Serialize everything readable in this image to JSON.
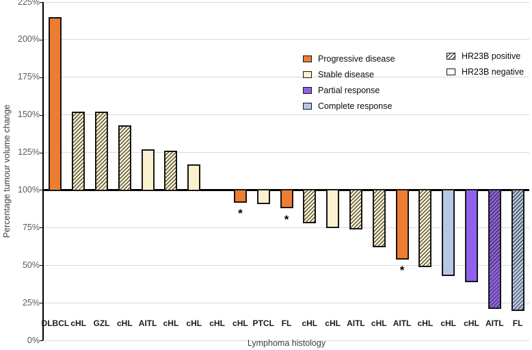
{
  "chart_data": {
    "type": "bar",
    "title": "",
    "xlabel": "Lymphoma histology",
    "ylabel": "Percentage tumour volume change",
    "baseline": 100,
    "ylim": [
      0,
      225
    ],
    "grid": true,
    "legend_position": "upper-middle inside plot",
    "yticks": [
      {
        "v": 0,
        "label": "0%"
      },
      {
        "v": 25,
        "label": "25%"
      },
      {
        "v": 50,
        "label": "50%"
      },
      {
        "v": 75,
        "label": "75%"
      },
      {
        "v": 100,
        "label": "100%"
      },
      {
        "v": 125,
        "label": "125%"
      },
      {
        "v": 150,
        "label": "150%"
      },
      {
        "v": 175,
        "label": "175%"
      },
      {
        "v": 200,
        "label": "200%"
      },
      {
        "v": 225,
        "label": "225%"
      }
    ],
    "categories": [
      "DLBCL",
      "cHL",
      "GZL",
      "cHL",
      "AITL",
      "cHL",
      "cHL",
      "cHL",
      "cHL",
      "PTCL",
      "FL",
      "cHL",
      "cHL",
      "AITL",
      "cHL",
      "AITL",
      "cHL",
      "cHL",
      "cHL",
      "AITL",
      "FL"
    ],
    "bars": [
      {
        "label": "DLBCL",
        "value": 215,
        "response": "progressive",
        "hr23b": "negative",
        "asterisk": false
      },
      {
        "label": "cHL",
        "value": 152,
        "response": "stable",
        "hr23b": "positive",
        "asterisk": false
      },
      {
        "label": "GZL",
        "value": 152,
        "response": "stable",
        "hr23b": "positive",
        "asterisk": false
      },
      {
        "label": "cHL",
        "value": 143,
        "response": "stable",
        "hr23b": "positive",
        "asterisk": false
      },
      {
        "label": "AITL",
        "value": 127,
        "response": "stable",
        "hr23b": "negative",
        "asterisk": false
      },
      {
        "label": "cHL",
        "value": 126,
        "response": "stable",
        "hr23b": "positive",
        "asterisk": false
      },
      {
        "label": "cHL",
        "value": 117,
        "response": "stable",
        "hr23b": "negative",
        "asterisk": false
      },
      {
        "label": "cHL",
        "value": 100,
        "response": "stable",
        "hr23b": "negative",
        "asterisk": false
      },
      {
        "label": "cHL",
        "value": 92,
        "response": "progressive",
        "hr23b": "negative",
        "asterisk": true
      },
      {
        "label": "PTCL",
        "value": 91,
        "response": "stable",
        "hr23b": "negative",
        "asterisk": false
      },
      {
        "label": "FL",
        "value": 88,
        "response": "progressive",
        "hr23b": "negative",
        "asterisk": true
      },
      {
        "label": "cHL",
        "value": 78,
        "response": "stable",
        "hr23b": "positive",
        "asterisk": false
      },
      {
        "label": "cHL",
        "value": 75,
        "response": "stable",
        "hr23b": "negative",
        "asterisk": false
      },
      {
        "label": "AITL",
        "value": 74,
        "response": "stable",
        "hr23b": "positive",
        "asterisk": false
      },
      {
        "label": "cHL",
        "value": 62,
        "response": "stable",
        "hr23b": "positive",
        "asterisk": false
      },
      {
        "label": "AITL",
        "value": 54,
        "response": "progressive",
        "hr23b": "negative",
        "asterisk": true
      },
      {
        "label": "cHL",
        "value": 49,
        "response": "stable",
        "hr23b": "positive",
        "asterisk": false
      },
      {
        "label": "cHL",
        "value": 43,
        "response": "complete",
        "hr23b": "negative",
        "asterisk": false
      },
      {
        "label": "cHL",
        "value": 39,
        "response": "partial",
        "hr23b": "negative",
        "asterisk": false
      },
      {
        "label": "AITL",
        "value": 21,
        "response": "partial",
        "hr23b": "positive",
        "asterisk": false
      },
      {
        "label": "FL",
        "value": 20,
        "response": "complete",
        "hr23b": "positive",
        "asterisk": false
      }
    ],
    "asterisk_symbol": "*",
    "legend": {
      "response_items": [
        {
          "key": "progressive",
          "label": "Progressive disease"
        },
        {
          "key": "stable",
          "label": "Stable disease"
        },
        {
          "key": "partial",
          "label": "Partial response"
        },
        {
          "key": "complete",
          "label": "Complete response"
        }
      ],
      "hr23b_items": [
        {
          "key": "positive",
          "label": "HR23B positive"
        },
        {
          "key": "negative",
          "label": "HR23B negative"
        }
      ]
    },
    "colors": {
      "progressive": "#ED7D31",
      "stable": "#FBF1CE",
      "partial": "#9161EC",
      "complete": "#B4C7E7",
      "gridline": "#D9D9D9",
      "axis": "#000000",
      "tick_text": "#595959",
      "axis_title_text": "#404040",
      "bar_outline": "#141414"
    }
  }
}
